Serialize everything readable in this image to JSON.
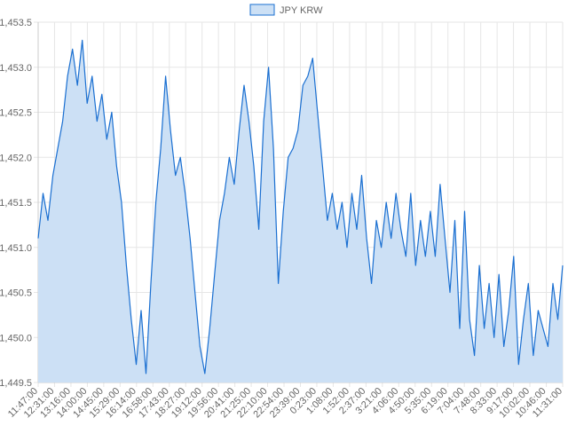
{
  "chart_data": {
    "type": "area",
    "legend": {
      "label": "JPY KRW",
      "position": "top-center"
    },
    "grid": true,
    "colors": {
      "line": "#1a6fd1",
      "fill": "#cce0f5",
      "grid": "#e6e6e6",
      "text": "#666666"
    },
    "ylim": [
      1449.5,
      1453.5
    ],
    "y_ticks": [
      "1,453.5",
      "1,453.0",
      "1,452.5",
      "1,452.0",
      "1,451.5",
      "1,451.0",
      "1,450.5",
      "1,450.0",
      "1,449.5"
    ],
    "y_tick_values": [
      1453.5,
      1453.0,
      1452.5,
      1452.0,
      1451.5,
      1451.0,
      1450.5,
      1450.0,
      1449.5
    ],
    "x_ticks": [
      "11:47:00",
      "12:31:00",
      "13:16:00",
      "14:00:00",
      "14:45:00",
      "15:29:00",
      "16:14:00",
      "16:58:00",
      "17:43:00",
      "18:27:00",
      "19:12:00",
      "19:56:00",
      "20:41:00",
      "21:25:00",
      "22:10:00",
      "22:54:00",
      "23:39:00",
      "0:23:00",
      "1:08:00",
      "1:52:00",
      "2:37:00",
      "3:21:00",
      "4:06:00",
      "4:50:00",
      "5:35:00",
      "6:19:00",
      "7:04:00",
      "7:48:00",
      "8:33:00",
      "9:17:00",
      "10:02:00",
      "10:46:00",
      "11:31:00"
    ],
    "series": [
      {
        "name": "JPY KRW",
        "values": [
          1451.1,
          1451.6,
          1451.3,
          1451.8,
          1452.1,
          1452.4,
          1452.9,
          1453.2,
          1452.8,
          1453.3,
          1452.6,
          1452.9,
          1452.4,
          1452.7,
          1452.2,
          1452.5,
          1451.9,
          1451.5,
          1450.8,
          1450.2,
          1449.7,
          1450.3,
          1449.6,
          1450.6,
          1451.5,
          1452.1,
          1452.9,
          1452.3,
          1451.8,
          1452.0,
          1451.6,
          1451.1,
          1450.5,
          1449.9,
          1449.6,
          1450.1,
          1450.7,
          1451.3,
          1451.6,
          1452.0,
          1451.7,
          1452.3,
          1452.8,
          1452.4,
          1451.9,
          1451.2,
          1452.4,
          1453.0,
          1452.1,
          1450.6,
          1451.4,
          1452.0,
          1452.1,
          1452.3,
          1452.8,
          1452.9,
          1453.1,
          1452.5,
          1451.9,
          1451.3,
          1451.6,
          1451.2,
          1451.5,
          1451.0,
          1451.6,
          1451.2,
          1451.8,
          1451.1,
          1450.6,
          1451.3,
          1451.0,
          1451.5,
          1451.1,
          1451.6,
          1451.2,
          1450.9,
          1451.6,
          1450.8,
          1451.3,
          1450.9,
          1451.4,
          1450.9,
          1451.7,
          1451.1,
          1450.5,
          1451.3,
          1450.1,
          1451.4,
          1450.2,
          1449.8,
          1450.8,
          1450.1,
          1450.6,
          1450.0,
          1450.7,
          1449.9,
          1450.3,
          1450.9,
          1449.7,
          1450.2,
          1450.6,
          1449.8,
          1450.3,
          1450.1,
          1449.9,
          1450.6,
          1450.2,
          1450.8
        ]
      }
    ]
  }
}
